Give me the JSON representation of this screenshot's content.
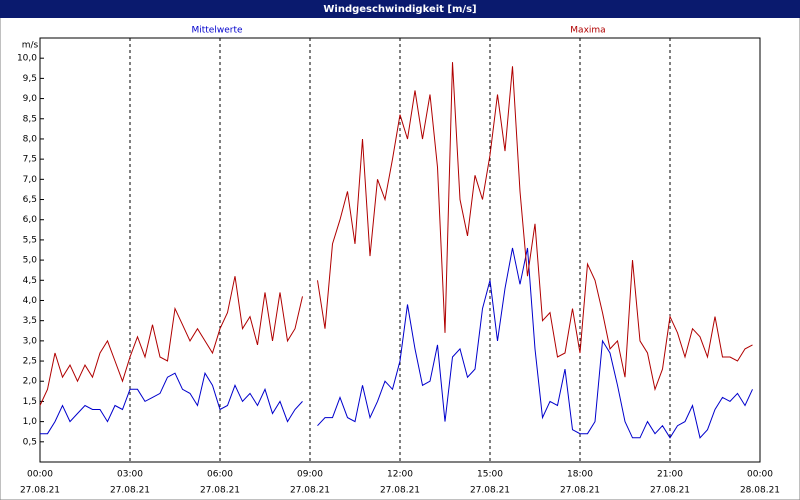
{
  "chart_data": {
    "type": "line",
    "title": "Windgeschwindigkeit [m/s]",
    "y_label": "m/s",
    "x": [
      0,
      0.25,
      0.5,
      0.75,
      1,
      1.25,
      1.5,
      1.75,
      2,
      2.25,
      2.5,
      2.75,
      3,
      3.25,
      3.5,
      3.75,
      4,
      4.25,
      4.5,
      4.75,
      5,
      5.25,
      5.5,
      5.75,
      6,
      6.25,
      6.5,
      6.75,
      7,
      7.25,
      7.5,
      7.75,
      8,
      8.25,
      8.5,
      8.75,
      9,
      9.25,
      9.5,
      9.75,
      10,
      10.25,
      10.5,
      10.75,
      11,
      11.25,
      11.5,
      11.75,
      12,
      12.25,
      12.5,
      12.75,
      13,
      13.25,
      13.5,
      13.75,
      14,
      14.25,
      14.5,
      14.75,
      15,
      15.25,
      15.5,
      15.75,
      16,
      16.25,
      16.5,
      16.75,
      17,
      17.25,
      17.5,
      17.75,
      18,
      18.25,
      18.5,
      18.75,
      19,
      19.25,
      19.5,
      19.75,
      20,
      20.25,
      20.5,
      20.75,
      21,
      21.25,
      21.5,
      21.75,
      22,
      22.25,
      22.5,
      22.75,
      23,
      23.25,
      23.5,
      23.75
    ],
    "series": [
      {
        "name": "Mittelwerte",
        "color": "#0000cc",
        "values": [
          0.7,
          0.7,
          1.0,
          1.4,
          1.0,
          1.2,
          1.4,
          1.3,
          1.3,
          1.0,
          1.4,
          1.3,
          1.8,
          1.8,
          1.5,
          1.6,
          1.7,
          2.1,
          2.2,
          1.8,
          1.7,
          1.4,
          2.2,
          1.9,
          1.3,
          1.4,
          1.9,
          1.5,
          1.7,
          1.4,
          1.8,
          1.2,
          1.5,
          1.0,
          1.3,
          1.5,
          null,
          0.9,
          1.1,
          1.1,
          1.6,
          1.1,
          1.0,
          1.9,
          1.1,
          1.5,
          2.0,
          1.8,
          2.5,
          3.9,
          2.8,
          1.9,
          2.0,
          2.9,
          1.0,
          2.6,
          2.8,
          2.1,
          2.3,
          3.8,
          4.5,
          3.0,
          4.3,
          5.3,
          4.4,
          5.3,
          2.8,
          1.1,
          1.5,
          1.4,
          2.3,
          0.8,
          0.7,
          0.7,
          1.0,
          3.0,
          2.7,
          1.9,
          1.0,
          0.6,
          0.6,
          1.0,
          0.7,
          0.9,
          0.6,
          0.9,
          1.0,
          1.4,
          0.6,
          0.8,
          1.3,
          1.6,
          1.5,
          1.7,
          1.4,
          1.8
        ]
      },
      {
        "name": "Maxima",
        "color": "#b00000",
        "values": [
          1.4,
          1.8,
          2.7,
          2.1,
          2.4,
          2.0,
          2.4,
          2.1,
          2.7,
          3.0,
          2.5,
          2.0,
          2.6,
          3.1,
          2.6,
          3.4,
          2.6,
          2.5,
          3.8,
          3.4,
          3.0,
          3.3,
          3.0,
          2.7,
          3.3,
          3.7,
          4.6,
          3.3,
          3.6,
          2.9,
          4.2,
          3.0,
          4.2,
          3.0,
          3.3,
          4.1,
          null,
          4.5,
          3.3,
          5.4,
          6.0,
          6.7,
          5.4,
          8.0,
          5.1,
          7.0,
          6.5,
          7.5,
          8.6,
          8.0,
          9.2,
          8.0,
          9.1,
          7.3,
          3.2,
          9.9,
          6.5,
          5.6,
          7.1,
          6.5,
          7.6,
          9.1,
          7.7,
          9.8,
          6.7,
          4.6,
          5.9,
          3.5,
          3.7,
          2.6,
          2.7,
          3.8,
          2.7,
          4.9,
          4.5,
          3.7,
          2.8,
          3.0,
          2.1,
          5.0,
          3.0,
          2.7,
          1.8,
          2.3,
          3.6,
          3.2,
          2.6,
          3.3,
          3.1,
          2.6,
          3.6,
          2.6,
          2.6,
          2.5,
          2.8,
          2.9
        ]
      }
    ],
    "xlim": [
      0,
      24
    ],
    "xticks": [
      {
        "value": 0,
        "label": "00:00",
        "date": "27.08.21"
      },
      {
        "value": 3,
        "label": "03:00",
        "date": "27.08.21"
      },
      {
        "value": 6,
        "label": "06:00",
        "date": "27.08.21"
      },
      {
        "value": 9,
        "label": "09:00",
        "date": "27.08.21"
      },
      {
        "value": 12,
        "label": "12:00",
        "date": "27.08.21"
      },
      {
        "value": 15,
        "label": "15:00",
        "date": "27.08.21"
      },
      {
        "value": 18,
        "label": "18:00",
        "date": "27.08.21"
      },
      {
        "value": 21,
        "label": "21:00",
        "date": "27.08.21"
      },
      {
        "value": 24,
        "label": "00:00",
        "date": "28.08.21"
      }
    ],
    "ylim": [
      0,
      10.5
    ],
    "yticks": [
      {
        "value": 0.5,
        "label": "0,5"
      },
      {
        "value": 1,
        "label": "1,0"
      },
      {
        "value": 1.5,
        "label": "1,5"
      },
      {
        "value": 2,
        "label": "2,0"
      },
      {
        "value": 2.5,
        "label": "2,5"
      },
      {
        "value": 3,
        "label": "3,0"
      },
      {
        "value": 3.5,
        "label": "3,5"
      },
      {
        "value": 4,
        "label": "4,0"
      },
      {
        "value": 4.5,
        "label": "4,5"
      },
      {
        "value": 5,
        "label": "5,0"
      },
      {
        "value": 5.5,
        "label": "5,5"
      },
      {
        "value": 6,
        "label": "6,0"
      },
      {
        "value": 6.5,
        "label": "6,5"
      },
      {
        "value": 7,
        "label": "7,0"
      },
      {
        "value": 7.5,
        "label": "7,5"
      },
      {
        "value": 8,
        "label": "8,0"
      },
      {
        "value": 8.5,
        "label": "8,5"
      },
      {
        "value": 9,
        "label": "9,0"
      },
      {
        "value": 9.5,
        "label": "9,5"
      },
      {
        "value": 10,
        "label": "10,0"
      }
    ],
    "grid": true
  }
}
